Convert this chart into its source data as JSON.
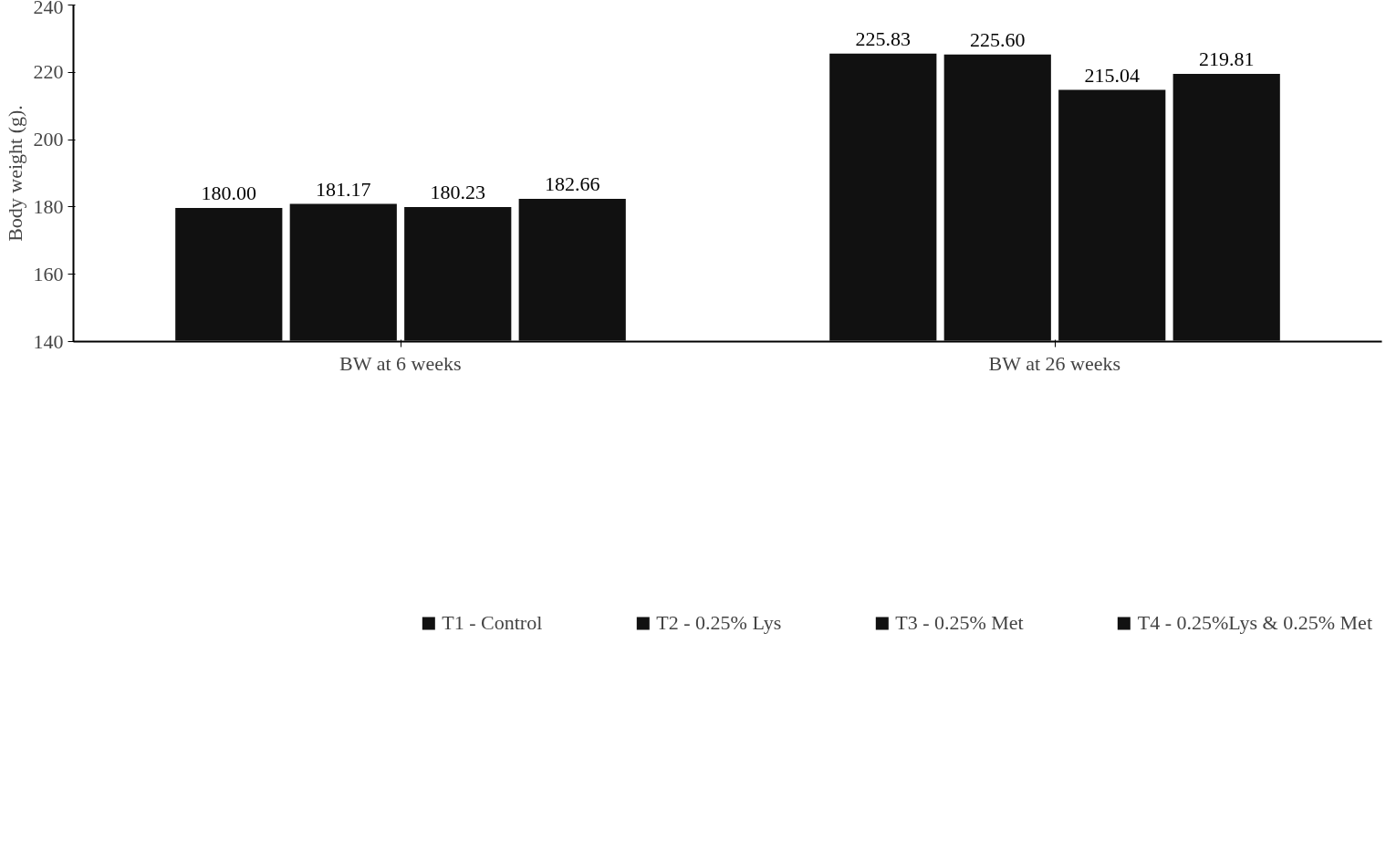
{
  "chart_data": {
    "type": "bar",
    "ylabel": "Body weight (g).",
    "categories": [
      "BW at 6 weeks",
      "BW at 26 weeks"
    ],
    "series": [
      {
        "name": "T1 - Control",
        "color": "#111111",
        "values": [
          180.0,
          225.83
        ],
        "value_labels": [
          "180.00",
          "225.83"
        ]
      },
      {
        "name": "T2 - 0.25% Lys",
        "color": "#111111",
        "values": [
          181.17,
          225.6
        ],
        "value_labels": [
          "181.17",
          "225.60"
        ]
      },
      {
        "name": "T3 - 0.25% Met",
        "color": "#111111",
        "values": [
          180.23,
          215.04
        ],
        "value_labels": [
          "180.23",
          "215.04"
        ]
      },
      {
        "name": "T4 - 0.25%Lys & 0.25% Met",
        "color": "#111111",
        "values": [
          182.66,
          219.81
        ],
        "value_labels": [
          "182.66",
          "219.81"
        ]
      }
    ],
    "ylim": [
      140,
      240
    ],
    "yticks": [
      140,
      160,
      180,
      200,
      220,
      240
    ],
    "grid": false,
    "legend": "bottom"
  }
}
